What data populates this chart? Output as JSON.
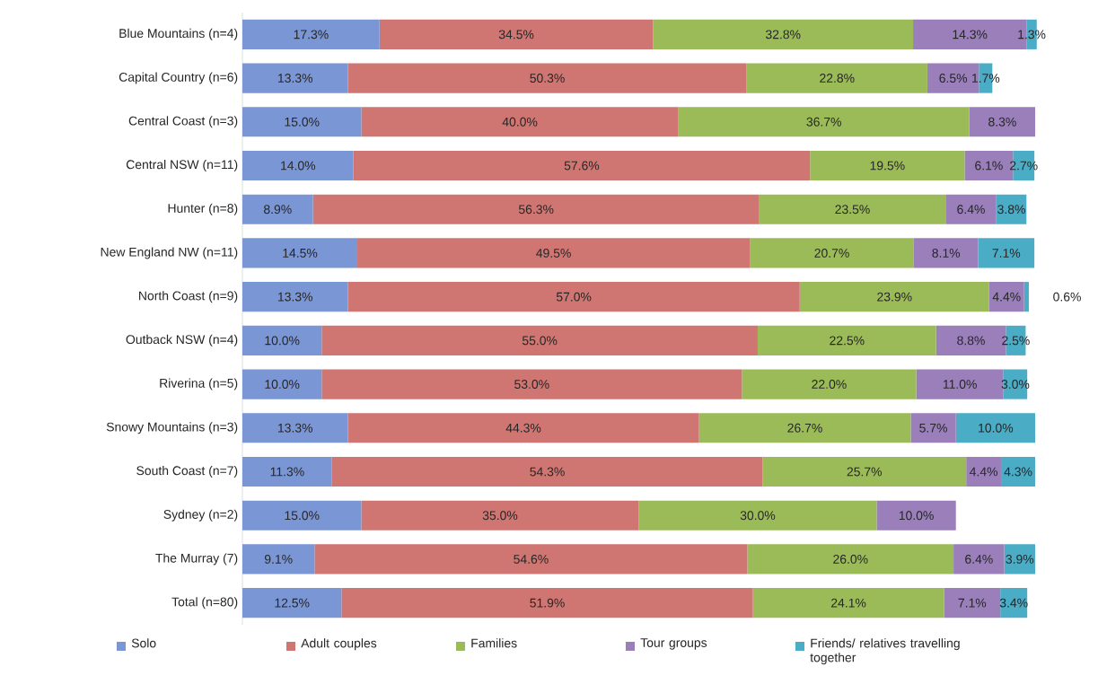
{
  "chart_data": {
    "type": "bar",
    "orientation": "horizontal",
    "stacked": true,
    "legend": "bottom",
    "categories": [
      "Blue Mountains (n=4)",
      "Capital Country (n=6)",
      "Central Coast (n=3)",
      "Central NSW (n=11)",
      "Hunter (n=8)",
      "New England NW (n=11)",
      "North Coast (n=9)",
      "Outback NSW (n=4)",
      "Riverina (n=5)",
      "Snowy Mountains (n=3)",
      "South Coast (n=7)",
      "Sydney (n=2)",
      "The Murray (7)",
      "Total (n=80)"
    ],
    "series": [
      {
        "name": "Solo",
        "color": "#7b96d4",
        "values": [
          17.3,
          13.3,
          15.0,
          14.0,
          8.9,
          14.5,
          13.3,
          10.0,
          10.0,
          13.3,
          11.3,
          15.0,
          9.1,
          12.5
        ],
        "value_labels": [
          "17.3%",
          "13.3%",
          "15.0%",
          "14.0%",
          "8.9%",
          "14.5%",
          "13.3%",
          "10.0%",
          "10.0%",
          "13.3%",
          "11.3%",
          "15.0%",
          "9.1%",
          "12.5%"
        ]
      },
      {
        "name": "Adult couples",
        "color": "#d07672",
        "values": [
          34.5,
          50.3,
          40.0,
          57.6,
          56.3,
          49.5,
          57.0,
          55.0,
          53.0,
          44.3,
          54.3,
          35.0,
          54.6,
          51.9
        ],
        "value_labels": [
          "34.5%",
          "50.3%",
          "40.0%",
          "57.6%",
          "56.3%",
          "49.5%",
          "57.0%",
          "55.0%",
          "53.0%",
          "44.3%",
          "54.3%",
          "35.0%",
          "54.6%",
          "51.9%"
        ]
      },
      {
        "name": "Families",
        "color": "#9bbb59",
        "values": [
          32.8,
          22.8,
          36.7,
          19.5,
          23.5,
          20.7,
          23.9,
          22.5,
          22.0,
          26.7,
          25.7,
          30.0,
          26.0,
          24.1
        ],
        "value_labels": [
          "32.8%",
          "22.8%",
          "36.7%",
          "19.5%",
          "23.5%",
          "20.7%",
          "23.9%",
          "22.5%",
          "22.0%",
          "26.7%",
          "25.7%",
          "30.0%",
          "26.0%",
          "24.1%"
        ]
      },
      {
        "name": "Tour groups",
        "color": "#9a7fba",
        "values": [
          14.3,
          6.5,
          8.3,
          6.1,
          6.4,
          8.1,
          4.4,
          8.8,
          11.0,
          5.7,
          4.4,
          10.0,
          6.4,
          7.1
        ],
        "value_labels": [
          "14.3%",
          "6.5%",
          "8.3%",
          "6.1%",
          "6.4%",
          "8.1%",
          "4.4%",
          "8.8%",
          "11.0%",
          "5.7%",
          "4.4%",
          "10.0%",
          "6.4%",
          "7.1%"
        ]
      },
      {
        "name": "Friends/ relatives travelling together",
        "color": "#4bacc6",
        "values": [
          1.3,
          1.7,
          null,
          2.7,
          3.8,
          7.1,
          0.6,
          2.5,
          3.0,
          10.0,
          4.3,
          null,
          3.9,
          3.4
        ],
        "value_labels": [
          "1.3%",
          "1.7%",
          null,
          "2.7%",
          "3.8%",
          "7.1%",
          "0.6%",
          "2.5%",
          "3.0%",
          "10.0%",
          "4.3%",
          null,
          "3.9%",
          "3.4%"
        ]
      }
    ]
  }
}
